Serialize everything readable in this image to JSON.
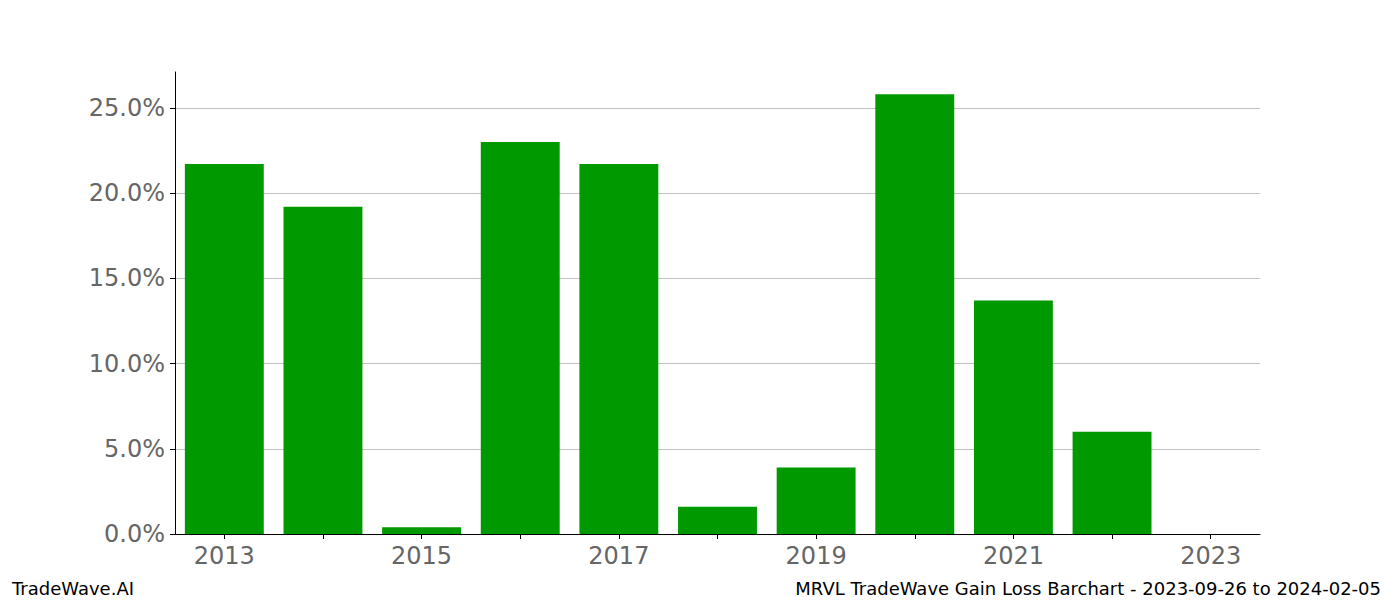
{
  "chart_data": {
    "type": "bar",
    "title": "MRVL TradeWave Gain Loss Barchart - 2023-09-26 to 2024-02-05",
    "source": "TradeWave.AI",
    "categories": [
      "2013",
      null,
      "2015",
      null,
      "2017",
      null,
      "2019",
      null,
      "2021",
      null,
      "2023"
    ],
    "values": [
      21.7,
      19.2,
      0.4,
      23.0,
      21.7,
      1.6,
      3.9,
      25.8,
      13.7,
      6.0,
      null
    ],
    "color": "#009900",
    "ylim": [
      0,
      27.1
    ],
    "yticks": [
      {
        "value": 0,
        "label": "0.0%"
      },
      {
        "value": 5,
        "label": "5.0%"
      },
      {
        "value": 10,
        "label": "10.0%"
      },
      {
        "value": 15,
        "label": "15.0%"
      },
      {
        "value": 20,
        "label": "20.0%"
      },
      {
        "value": 25,
        "label": "25.0%"
      }
    ],
    "grid": true
  }
}
